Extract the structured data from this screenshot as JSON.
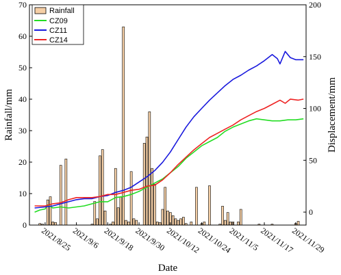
{
  "chart_data": {
    "type": "bar+line",
    "xlabel": "Date",
    "ylabel_left": "Rainfall/mm",
    "ylabel_right": "Displacement/mm",
    "ylim_left": [
      0,
      70
    ],
    "ylim_right": [
      -12.5,
      200
    ],
    "yticks_left": [
      0,
      10,
      20,
      30,
      40,
      50,
      60,
      70
    ],
    "yticks_right": [
      0,
      50,
      100,
      150,
      200
    ],
    "xlim": [
      "2021-08-19",
      "2021-12-03"
    ],
    "xticks": [
      {
        "date": "2021-08-25",
        "label": "2021/8/25"
      },
      {
        "date": "2021-09-06",
        "label": "2021/9/6"
      },
      {
        "date": "2021-09-18",
        "label": "2021/9/18"
      },
      {
        "date": "2021-09-30",
        "label": "2021/9/30"
      },
      {
        "date": "2021-10-12",
        "label": "2021/10/12"
      },
      {
        "date": "2021-10-24",
        "label": "2021/10/24"
      },
      {
        "date": "2021-11-05",
        "label": "2021/11/5"
      },
      {
        "date": "2021-11-17",
        "label": "2021/11/17"
      },
      {
        "date": "2021-11-29",
        "label": "2021/11/29"
      }
    ],
    "legend_position": "top-left",
    "rainfall": {
      "name": "Rainfall",
      "color": "#f5cfa6",
      "edge": "#000000",
      "points": [
        [
          "2021-08-23",
          0.5
        ],
        [
          "2021-08-24",
          0.3
        ],
        [
          "2021-08-26",
          8
        ],
        [
          "2021-08-27",
          9
        ],
        [
          "2021-08-28",
          1
        ],
        [
          "2021-08-29",
          0.8
        ],
        [
          "2021-08-31",
          19
        ],
        [
          "2021-09-02",
          21
        ],
        [
          "2021-09-12",
          0.3
        ],
        [
          "2021-09-13",
          7.5
        ],
        [
          "2021-09-14",
          2
        ],
        [
          "2021-09-15",
          22
        ],
        [
          "2021-09-16",
          24
        ],
        [
          "2021-09-17",
          4.5
        ],
        [
          "2021-09-19",
          0.3
        ],
        [
          "2021-09-20",
          1
        ],
        [
          "2021-09-21",
          18
        ],
        [
          "2021-09-22",
          5.5
        ],
        [
          "2021-09-23",
          9
        ],
        [
          "2021-09-24",
          63
        ],
        [
          "2021-09-25",
          1.5
        ],
        [
          "2021-09-26",
          1
        ],
        [
          "2021-09-27",
          17
        ],
        [
          "2021-09-28",
          2
        ],
        [
          "2021-09-29",
          1.5
        ],
        [
          "2021-10-02",
          26
        ],
        [
          "2021-10-03",
          28
        ],
        [
          "2021-10-04",
          36
        ],
        [
          "2021-10-05",
          18
        ],
        [
          "2021-10-06",
          13
        ],
        [
          "2021-10-07",
          1
        ],
        [
          "2021-10-08",
          0.8
        ],
        [
          "2021-10-09",
          5
        ],
        [
          "2021-10-10",
          12
        ],
        [
          "2021-10-11",
          4.5
        ],
        [
          "2021-10-12",
          4
        ],
        [
          "2021-10-13",
          3
        ],
        [
          "2021-10-14",
          2
        ],
        [
          "2021-10-15",
          1.5
        ],
        [
          "2021-10-16",
          2
        ],
        [
          "2021-10-17",
          2.5
        ],
        [
          "2021-10-18",
          0.5
        ],
        [
          "2021-10-20",
          1
        ],
        [
          "2021-10-22",
          12
        ],
        [
          "2021-10-24",
          0.5
        ],
        [
          "2021-10-25",
          1
        ],
        [
          "2021-10-27",
          12.5
        ],
        [
          "2021-10-31",
          0.3
        ],
        [
          "2021-11-01",
          6
        ],
        [
          "2021-11-02",
          1.5
        ],
        [
          "2021-11-03",
          4
        ],
        [
          "2021-11-04",
          1
        ],
        [
          "2021-11-05",
          1
        ],
        [
          "2021-11-07",
          1
        ],
        [
          "2021-11-08",
          5
        ],
        [
          "2021-11-15",
          0.3
        ],
        [
          "2021-11-20",
          0.3
        ],
        [
          "2021-11-29",
          0.5
        ],
        [
          "2021-11-30",
          1.2
        ]
      ]
    },
    "series": [
      {
        "name": "CZ09",
        "color": "#22dd22",
        "points": [
          [
            "2021-08-21",
            0
          ],
          [
            "2021-08-23",
            2
          ],
          [
            "2021-08-25",
            3
          ],
          [
            "2021-08-26",
            7
          ],
          [
            "2021-08-28",
            4
          ],
          [
            "2021-08-31",
            5
          ],
          [
            "2021-09-03",
            4
          ],
          [
            "2021-09-06",
            5
          ],
          [
            "2021-09-09",
            6
          ],
          [
            "2021-09-12",
            8
          ],
          [
            "2021-09-15",
            10
          ],
          [
            "2021-09-18",
            10
          ],
          [
            "2021-09-21",
            14
          ],
          [
            "2021-09-24",
            15
          ],
          [
            "2021-09-27",
            17
          ],
          [
            "2021-09-30",
            20
          ],
          [
            "2021-10-03",
            24
          ],
          [
            "2021-10-06",
            28
          ],
          [
            "2021-10-09",
            32
          ],
          [
            "2021-10-12",
            38
          ],
          [
            "2021-10-15",
            44
          ],
          [
            "2021-10-18",
            52
          ],
          [
            "2021-10-21",
            58
          ],
          [
            "2021-10-24",
            64
          ],
          [
            "2021-10-27",
            68
          ],
          [
            "2021-10-30",
            72
          ],
          [
            "2021-11-02",
            78
          ],
          [
            "2021-11-05",
            82
          ],
          [
            "2021-11-08",
            85
          ],
          [
            "2021-11-11",
            88
          ],
          [
            "2021-11-14",
            90
          ],
          [
            "2021-11-17",
            89
          ],
          [
            "2021-11-20",
            88
          ],
          [
            "2021-11-23",
            88
          ],
          [
            "2021-11-26",
            89
          ],
          [
            "2021-11-29",
            89
          ],
          [
            "2021-12-02",
            90
          ]
        ]
      },
      {
        "name": "CZ11",
        "color": "#1818dd",
        "points": [
          [
            "2021-08-21",
            4
          ],
          [
            "2021-08-25",
            5
          ],
          [
            "2021-08-28",
            6
          ],
          [
            "2021-08-31",
            8
          ],
          [
            "2021-09-03",
            10
          ],
          [
            "2021-09-06",
            12
          ],
          [
            "2021-09-09",
            13
          ],
          [
            "2021-09-12",
            13
          ],
          [
            "2021-09-15",
            15
          ],
          [
            "2021-09-18",
            16
          ],
          [
            "2021-09-21",
            19
          ],
          [
            "2021-09-24",
            21
          ],
          [
            "2021-09-27",
            24
          ],
          [
            "2021-09-30",
            29
          ],
          [
            "2021-10-03",
            34
          ],
          [
            "2021-10-06",
            40
          ],
          [
            "2021-10-09",
            48
          ],
          [
            "2021-10-12",
            58
          ],
          [
            "2021-10-15",
            70
          ],
          [
            "2021-10-18",
            82
          ],
          [
            "2021-10-21",
            92
          ],
          [
            "2021-10-24",
            100
          ],
          [
            "2021-10-27",
            108
          ],
          [
            "2021-10-30",
            115
          ],
          [
            "2021-11-02",
            122
          ],
          [
            "2021-11-05",
            128
          ],
          [
            "2021-11-08",
            132
          ],
          [
            "2021-11-11",
            137
          ],
          [
            "2021-11-14",
            141
          ],
          [
            "2021-11-17",
            146
          ],
          [
            "2021-11-20",
            152
          ],
          [
            "2021-11-22",
            148
          ],
          [
            "2021-11-23",
            143
          ],
          [
            "2021-11-25",
            155
          ],
          [
            "2021-11-27",
            149
          ],
          [
            "2021-11-29",
            147
          ],
          [
            "2021-12-02",
            147
          ]
        ]
      },
      {
        "name": "CZ14",
        "color": "#ee2222",
        "points": [
          [
            "2021-08-21",
            6
          ],
          [
            "2021-08-25",
            6
          ],
          [
            "2021-08-28",
            8
          ],
          [
            "2021-08-31",
            9
          ],
          [
            "2021-09-03",
            12
          ],
          [
            "2021-09-06",
            14
          ],
          [
            "2021-09-09",
            14
          ],
          [
            "2021-09-12",
            14
          ],
          [
            "2021-09-15",
            15
          ],
          [
            "2021-09-18",
            17
          ],
          [
            "2021-09-21",
            17
          ],
          [
            "2021-09-24",
            19
          ],
          [
            "2021-09-27",
            21
          ],
          [
            "2021-09-30",
            22
          ],
          [
            "2021-10-03",
            25
          ],
          [
            "2021-10-06",
            26
          ],
          [
            "2021-10-09",
            31
          ],
          [
            "2021-10-12",
            38
          ],
          [
            "2021-10-15",
            46
          ],
          [
            "2021-10-18",
            53
          ],
          [
            "2021-10-21",
            60
          ],
          [
            "2021-10-24",
            66
          ],
          [
            "2021-10-27",
            72
          ],
          [
            "2021-10-30",
            76
          ],
          [
            "2021-11-02",
            80
          ],
          [
            "2021-11-05",
            84
          ],
          [
            "2021-11-08",
            89
          ],
          [
            "2021-11-11",
            93
          ],
          [
            "2021-11-14",
            97
          ],
          [
            "2021-11-17",
            100
          ],
          [
            "2021-11-20",
            104
          ],
          [
            "2021-11-23",
            108
          ],
          [
            "2021-11-25",
            105
          ],
          [
            "2021-11-27",
            109
          ],
          [
            "2021-11-30",
            108
          ],
          [
            "2021-12-02",
            109
          ]
        ]
      }
    ]
  }
}
